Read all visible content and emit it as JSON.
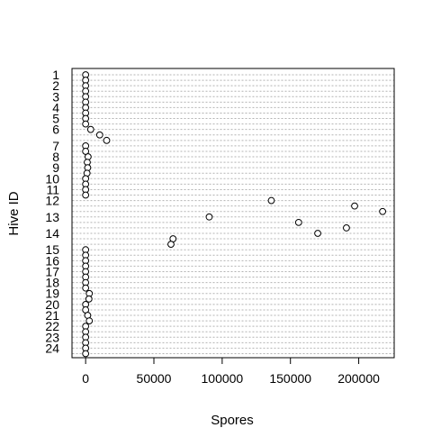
{
  "chart_data": {
    "type": "scatter",
    "title": "",
    "xlabel": "Spores",
    "ylabel": "Hive ID",
    "xlim": [
      -9000,
      225000
    ],
    "x_ticks": [
      0,
      50000,
      100000,
      150000,
      200000
    ],
    "x_tick_labels": [
      "0",
      "50000",
      "100000",
      "150000",
      "200000"
    ],
    "categories": [
      "1",
      "2",
      "3",
      "4",
      "5",
      "6",
      "7",
      "8",
      "9",
      "10",
      "11",
      "12",
      "13",
      "14",
      "15",
      "16",
      "17",
      "18",
      "19",
      "20",
      "21",
      "22",
      "23",
      "24"
    ],
    "grid": "horizontal dotted per observation",
    "marker": "open-circle",
    "rows": [
      {
        "hive": "1",
        "x": [
          0,
          0
        ]
      },
      {
        "hive": "2",
        "x": [
          0,
          0
        ]
      },
      {
        "hive": "3",
        "x": [
          0,
          0
        ]
      },
      {
        "hive": "4",
        "x": [
          0,
          0
        ]
      },
      {
        "hive": "5",
        "x": [
          0,
          0
        ]
      },
      {
        "hive": "6",
        "x": [
          3700,
          10300,
          15400
        ]
      },
      {
        "hive": "7",
        "x": [
          0,
          0
        ]
      },
      {
        "hive": "8",
        "x": [
          1800,
          1200
        ]
      },
      {
        "hive": "9",
        "x": [
          1500,
          1000
        ]
      },
      {
        "hive": "10",
        "x": [
          0,
          0
        ]
      },
      {
        "hive": "11",
        "x": [
          0,
          0
        ]
      },
      {
        "hive": "12",
        "x": [
          136000,
          197000,
          217500
        ]
      },
      {
        "hive": "13",
        "x": [
          90500,
          156000,
          191000
        ]
      },
      {
        "hive": "14",
        "x": [
          170000,
          64000,
          62500
        ]
      },
      {
        "hive": "15",
        "x": [
          0,
          0
        ]
      },
      {
        "hive": "16",
        "x": [
          0,
          0
        ]
      },
      {
        "hive": "17",
        "x": [
          0,
          0
        ]
      },
      {
        "hive": "18",
        "x": [
          0,
          0
        ]
      },
      {
        "hive": "19",
        "x": [
          2700,
          2400
        ]
      },
      {
        "hive": "20",
        "x": [
          0,
          0
        ]
      },
      {
        "hive": "21",
        "x": [
          1500,
          2700
        ]
      },
      {
        "hive": "22",
        "x": [
          0,
          0
        ]
      },
      {
        "hive": "23",
        "x": [
          0,
          0
        ]
      },
      {
        "hive": "24",
        "x": [
          0,
          0
        ]
      }
    ]
  }
}
